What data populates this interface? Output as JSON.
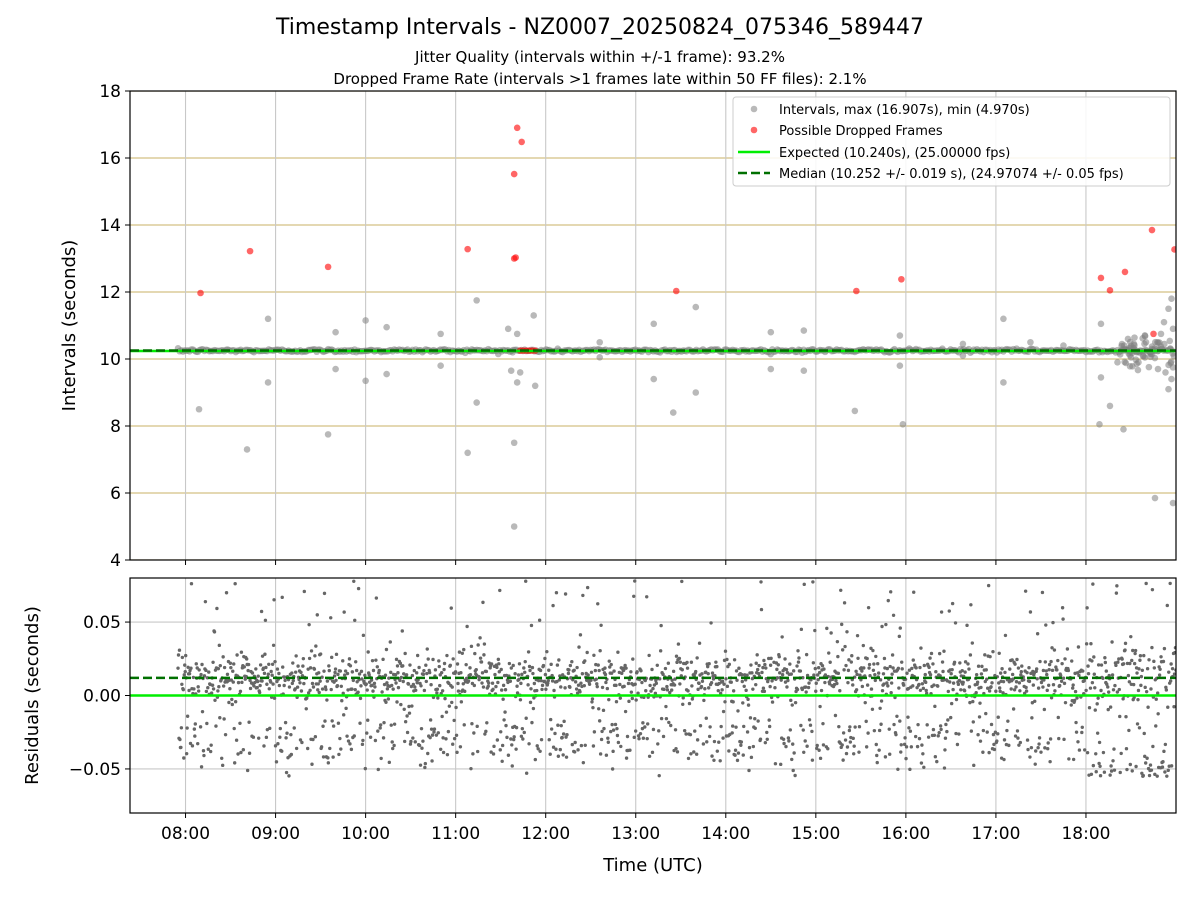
{
  "title": "Timestamp Intervals - NZ0007_20250824_075346_589447",
  "subtitle_lines": [
    "Jitter Quality (intervals within +/-1 frame): 93.2%",
    "Dropped Frame Rate (intervals >1 frames late within 50 FF files): 2.1%"
  ],
  "colors": {
    "intervals": "#808080",
    "dropped": "#ff0000",
    "expected": "#00ee00",
    "median": "#007000",
    "hgrid_top": "#d4c184",
    "vgrid": "#c8c8c8"
  },
  "chart_data": [
    {
      "type": "scatter",
      "panel": "intervals",
      "ylabel": "Intervals (seconds)",
      "ylim": [
        4,
        18
      ],
      "yticks": [
        4,
        6,
        8,
        10,
        12,
        14,
        16,
        18
      ],
      "grid": true,
      "legend_placement": "top-right",
      "legend": [
        "Intervals, max (16.907s), min (4.970s)",
        "Possible Dropped Frames",
        "Expected (10.240s), (25.00000 fps)",
        "Median (10.252 +/- 0.019 s), (24.97074 +/- 0.05 fps)"
      ],
      "expected": 10.24,
      "median": 10.252,
      "series": [
        {
          "name": "Intervals, max (16.907s), min (4.970s)",
          "typical_value": 10.25,
          "band_from_time": "07:55",
          "band_to_time": "18:58",
          "outliers": [
            [
              "08:09",
              8.5
            ],
            [
              "08:55",
              11.2
            ],
            [
              "08:55",
              9.3
            ],
            [
              "08:41",
              7.3
            ],
            [
              "09:40",
              10.8
            ],
            [
              "09:40",
              9.7
            ],
            [
              "09:35",
              7.75
            ],
            [
              "10:00",
              11.15
            ],
            [
              "10:00",
              9.35
            ],
            [
              "10:14",
              10.95
            ],
            [
              "10:14",
              9.55
            ],
            [
              "10:50",
              10.75
            ],
            [
              "10:50",
              9.8
            ],
            [
              "11:08",
              7.2
            ],
            [
              "11:14",
              11.75
            ],
            [
              "11:14",
              8.7
            ],
            [
              "11:35",
              10.9
            ],
            [
              "11:37",
              9.65
            ],
            [
              "11:38",
              10.2
            ],
            [
              "11:39",
              7.5
            ],
            [
              "11:39",
              5.0
            ],
            [
              "11:41",
              10.75
            ],
            [
              "11:41",
              9.3
            ],
            [
              "11:43",
              9.6
            ],
            [
              "11:52",
              11.3
            ],
            [
              "11:53",
              9.2
            ],
            [
              "12:36",
              10.5
            ],
            [
              "12:36",
              10.05
            ],
            [
              "13:12",
              11.05
            ],
            [
              "13:12",
              9.4
            ],
            [
              "13:25",
              8.4
            ],
            [
              "13:40",
              11.55
            ],
            [
              "13:40",
              9.0
            ],
            [
              "14:30",
              10.8
            ],
            [
              "14:30",
              9.7
            ],
            [
              "14:52",
              10.85
            ],
            [
              "14:52",
              9.65
            ],
            [
              "15:26",
              8.45
            ],
            [
              "15:56",
              10.7
            ],
            [
              "15:56",
              9.8
            ],
            [
              "15:58",
              8.05
            ],
            [
              "16:38",
              10.45
            ],
            [
              "16:38",
              10.1
            ],
            [
              "17:05",
              11.2
            ],
            [
              "17:05",
              9.3
            ],
            [
              "17:23",
              10.5
            ],
            [
              "17:45",
              10.4
            ],
            [
              "18:10",
              11.05
            ],
            [
              "18:10",
              9.45
            ],
            [
              "18:09",
              8.05
            ],
            [
              "18:16",
              8.6
            ],
            [
              "18:21",
              9.9
            ],
            [
              "18:25",
              7.9
            ],
            [
              "18:28",
              10.6
            ],
            [
              "18:32",
              10.45
            ],
            [
              "18:35",
              9.9
            ],
            [
              "18:40",
              10.5
            ],
            [
              "18:44",
              10.3
            ],
            [
              "18:48",
              9.7
            ],
            [
              "18:50",
              10.75
            ],
            [
              "18:52",
              11.1
            ],
            [
              "18:53",
              9.6
            ],
            [
              "18:55",
              11.5
            ],
            [
              "18:55",
              9.1
            ],
            [
              "18:57",
              11.8
            ],
            [
              "18:57",
              9.4
            ],
            [
              "18:58",
              10.9
            ],
            [
              "18:58",
              9.75
            ],
            [
              "18:46",
              5.85
            ],
            [
              "18:58",
              5.7
            ]
          ]
        },
        {
          "name": "Possible Dropped Frames",
          "points": [
            [
              "08:10",
              11.97
            ],
            [
              "08:43",
              13.22
            ],
            [
              "09:35",
              12.75
            ],
            [
              "11:08",
              13.28
            ],
            [
              "11:39",
              13.0
            ],
            [
              "11:40",
              13.03
            ],
            [
              "11:39",
              15.52
            ],
            [
              "11:41",
              16.9
            ],
            [
              "11:44",
              16.48
            ],
            [
              "13:27",
              12.03
            ],
            [
              "15:27",
              12.03
            ],
            [
              "15:57",
              12.38
            ],
            [
              "18:10",
              12.42
            ],
            [
              "18:16",
              12.05
            ],
            [
              "18:26",
              12.6
            ],
            [
              "18:44",
              13.85
            ],
            [
              "18:45",
              10.75
            ],
            [
              "18:59",
              13.27
            ],
            [
              "11:43",
              10.25
            ],
            [
              "11:45",
              10.25
            ],
            [
              "11:47",
              10.25
            ],
            [
              "11:49",
              10.25
            ],
            [
              "11:51",
              10.25
            ],
            [
              "11:53",
              10.25
            ]
          ]
        }
      ]
    },
    {
      "type": "scatter",
      "panel": "residuals",
      "ylabel": "Residuals (seconds)",
      "xlabel": "Time (UTC)",
      "ylim": [
        -0.08,
        0.08
      ],
      "yticks": [
        -0.05,
        0.0,
        0.05
      ],
      "ytick_labels": [
        "−0.05",
        "0.00",
        "0.05"
      ],
      "xlim": [
        "07:23",
        "19:00"
      ],
      "xticks": [
        "08:00",
        "09:00",
        "10:00",
        "11:00",
        "12:00",
        "13:00",
        "14:00",
        "15:00",
        "16:00",
        "17:00",
        "18:00"
      ],
      "grid": true,
      "zero_line": 0.0,
      "median_line": 0.012,
      "series": [
        {
          "name": "",
          "time_range": [
            "07:55",
            "19:00"
          ],
          "center": 0.012,
          "spread": [
            -0.055,
            0.078
          ]
        }
      ]
    }
  ]
}
